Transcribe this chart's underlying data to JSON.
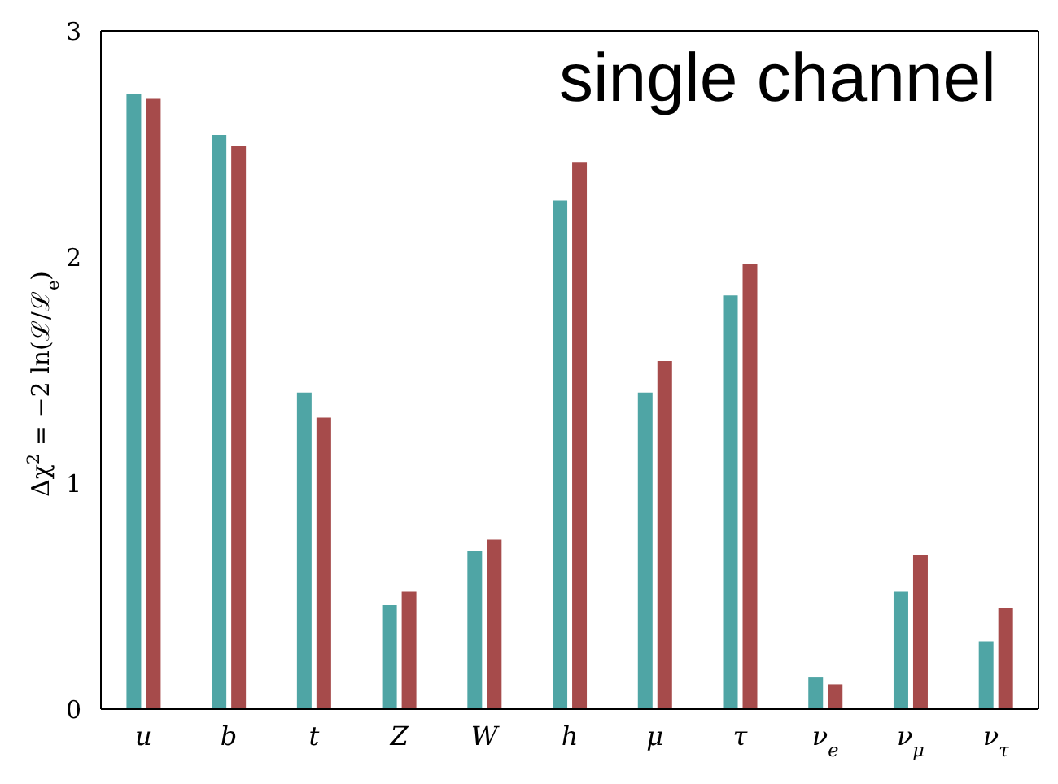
{
  "chart_data": {
    "type": "bar",
    "ylabel": "Δχ$^{2}$ = −2 ln(ℒ/ℒ$_{e}$)",
    "annotations": [
      "single channel"
    ],
    "categories": [
      "u",
      "b",
      "t",
      "Z",
      "W",
      "h",
      "μ",
      "τ",
      "ν$_{e}$",
      "ν$_{μ}$",
      "ν$_{τ}$"
    ],
    "series": [
      {
        "color": "#4fa5a5",
        "values": [
          2.72,
          2.54,
          1.4,
          0.46,
          0.7,
          2.25,
          1.4,
          1.83,
          0.14,
          0.52,
          0.3
        ]
      },
      {
        "color": "#a64b4b",
        "values": [
          2.7,
          2.49,
          1.29,
          0.52,
          0.75,
          2.42,
          1.54,
          1.97,
          0.11,
          0.68,
          0.45
        ]
      }
    ],
    "ylim": [
      0,
      3
    ],
    "yticks": [
      0,
      1,
      2,
      3
    ],
    "grid": false,
    "legend": false
  }
}
